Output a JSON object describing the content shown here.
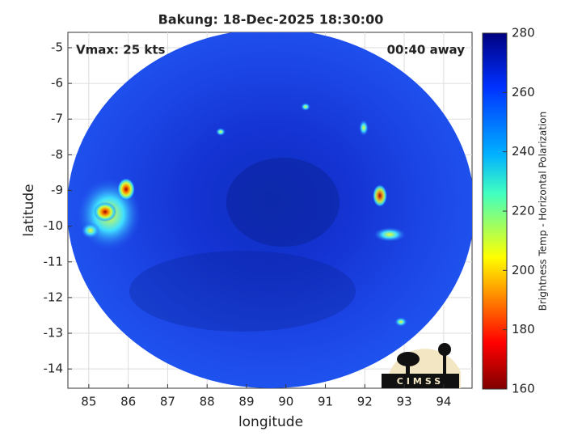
{
  "chart_data": {
    "type": "image",
    "title": "Bakung: 18-Dec-2025 18:30:00",
    "annotations": [
      "Vmax: 25 kts",
      "00:40 away"
    ],
    "x_label": "longitude",
    "y_label": "latitude",
    "xlim": [
      84.47,
      94.72
    ],
    "xticks": [
      85,
      86,
      87,
      88,
      89,
      90,
      91,
      92,
      93,
      94
    ],
    "ylim": [
      -14.54,
      -4.57
    ],
    "yticks": [
      -5,
      -6,
      -7,
      -8,
      -9,
      -10,
      -11,
      -12,
      -13,
      -14
    ],
    "grid": true,
    "colorbar": {
      "label": "Brightness Temp - Horizontal Polarization",
      "lim": [
        160,
        280
      ],
      "ticks": [
        160,
        180,
        200,
        220,
        240,
        260,
        280
      ]
    },
    "logo": "CIMSS"
  }
}
